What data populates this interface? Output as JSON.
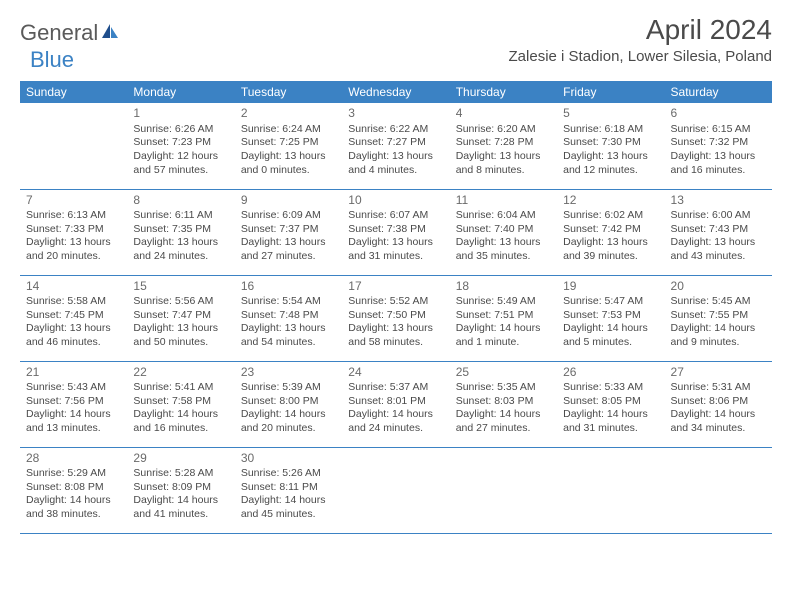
{
  "logo": {
    "text1": "General",
    "text2": "Blue"
  },
  "title": "April 2024",
  "location": "Zalesie i Stadion, Lower Silesia, Poland",
  "colors": {
    "header_bg": "#3b82c4",
    "header_text": "#ffffff",
    "text": "#4a4a4a",
    "logo_gray": "#5a5a5a",
    "logo_blue": "#3b82c4"
  },
  "weekdays": [
    "Sunday",
    "Monday",
    "Tuesday",
    "Wednesday",
    "Thursday",
    "Friday",
    "Saturday"
  ],
  "weeks": [
    [
      null,
      {
        "n": "1",
        "sr": "Sunrise: 6:26 AM",
        "ss": "Sunset: 7:23 PM",
        "d1": "Daylight: 12 hours",
        "d2": "and 57 minutes."
      },
      {
        "n": "2",
        "sr": "Sunrise: 6:24 AM",
        "ss": "Sunset: 7:25 PM",
        "d1": "Daylight: 13 hours",
        "d2": "and 0 minutes."
      },
      {
        "n": "3",
        "sr": "Sunrise: 6:22 AM",
        "ss": "Sunset: 7:27 PM",
        "d1": "Daylight: 13 hours",
        "d2": "and 4 minutes."
      },
      {
        "n": "4",
        "sr": "Sunrise: 6:20 AM",
        "ss": "Sunset: 7:28 PM",
        "d1": "Daylight: 13 hours",
        "d2": "and 8 minutes."
      },
      {
        "n": "5",
        "sr": "Sunrise: 6:18 AM",
        "ss": "Sunset: 7:30 PM",
        "d1": "Daylight: 13 hours",
        "d2": "and 12 minutes."
      },
      {
        "n": "6",
        "sr": "Sunrise: 6:15 AM",
        "ss": "Sunset: 7:32 PM",
        "d1": "Daylight: 13 hours",
        "d2": "and 16 minutes."
      }
    ],
    [
      {
        "n": "7",
        "sr": "Sunrise: 6:13 AM",
        "ss": "Sunset: 7:33 PM",
        "d1": "Daylight: 13 hours",
        "d2": "and 20 minutes."
      },
      {
        "n": "8",
        "sr": "Sunrise: 6:11 AM",
        "ss": "Sunset: 7:35 PM",
        "d1": "Daylight: 13 hours",
        "d2": "and 24 minutes."
      },
      {
        "n": "9",
        "sr": "Sunrise: 6:09 AM",
        "ss": "Sunset: 7:37 PM",
        "d1": "Daylight: 13 hours",
        "d2": "and 27 minutes."
      },
      {
        "n": "10",
        "sr": "Sunrise: 6:07 AM",
        "ss": "Sunset: 7:38 PM",
        "d1": "Daylight: 13 hours",
        "d2": "and 31 minutes."
      },
      {
        "n": "11",
        "sr": "Sunrise: 6:04 AM",
        "ss": "Sunset: 7:40 PM",
        "d1": "Daylight: 13 hours",
        "d2": "and 35 minutes."
      },
      {
        "n": "12",
        "sr": "Sunrise: 6:02 AM",
        "ss": "Sunset: 7:42 PM",
        "d1": "Daylight: 13 hours",
        "d2": "and 39 minutes."
      },
      {
        "n": "13",
        "sr": "Sunrise: 6:00 AM",
        "ss": "Sunset: 7:43 PM",
        "d1": "Daylight: 13 hours",
        "d2": "and 43 minutes."
      }
    ],
    [
      {
        "n": "14",
        "sr": "Sunrise: 5:58 AM",
        "ss": "Sunset: 7:45 PM",
        "d1": "Daylight: 13 hours",
        "d2": "and 46 minutes."
      },
      {
        "n": "15",
        "sr": "Sunrise: 5:56 AM",
        "ss": "Sunset: 7:47 PM",
        "d1": "Daylight: 13 hours",
        "d2": "and 50 minutes."
      },
      {
        "n": "16",
        "sr": "Sunrise: 5:54 AM",
        "ss": "Sunset: 7:48 PM",
        "d1": "Daylight: 13 hours",
        "d2": "and 54 minutes."
      },
      {
        "n": "17",
        "sr": "Sunrise: 5:52 AM",
        "ss": "Sunset: 7:50 PM",
        "d1": "Daylight: 13 hours",
        "d2": "and 58 minutes."
      },
      {
        "n": "18",
        "sr": "Sunrise: 5:49 AM",
        "ss": "Sunset: 7:51 PM",
        "d1": "Daylight: 14 hours",
        "d2": "and 1 minute."
      },
      {
        "n": "19",
        "sr": "Sunrise: 5:47 AM",
        "ss": "Sunset: 7:53 PM",
        "d1": "Daylight: 14 hours",
        "d2": "and 5 minutes."
      },
      {
        "n": "20",
        "sr": "Sunrise: 5:45 AM",
        "ss": "Sunset: 7:55 PM",
        "d1": "Daylight: 14 hours",
        "d2": "and 9 minutes."
      }
    ],
    [
      {
        "n": "21",
        "sr": "Sunrise: 5:43 AM",
        "ss": "Sunset: 7:56 PM",
        "d1": "Daylight: 14 hours",
        "d2": "and 13 minutes."
      },
      {
        "n": "22",
        "sr": "Sunrise: 5:41 AM",
        "ss": "Sunset: 7:58 PM",
        "d1": "Daylight: 14 hours",
        "d2": "and 16 minutes."
      },
      {
        "n": "23",
        "sr": "Sunrise: 5:39 AM",
        "ss": "Sunset: 8:00 PM",
        "d1": "Daylight: 14 hours",
        "d2": "and 20 minutes."
      },
      {
        "n": "24",
        "sr": "Sunrise: 5:37 AM",
        "ss": "Sunset: 8:01 PM",
        "d1": "Daylight: 14 hours",
        "d2": "and 24 minutes."
      },
      {
        "n": "25",
        "sr": "Sunrise: 5:35 AM",
        "ss": "Sunset: 8:03 PM",
        "d1": "Daylight: 14 hours",
        "d2": "and 27 minutes."
      },
      {
        "n": "26",
        "sr": "Sunrise: 5:33 AM",
        "ss": "Sunset: 8:05 PM",
        "d1": "Daylight: 14 hours",
        "d2": "and 31 minutes."
      },
      {
        "n": "27",
        "sr": "Sunrise: 5:31 AM",
        "ss": "Sunset: 8:06 PM",
        "d1": "Daylight: 14 hours",
        "d2": "and 34 minutes."
      }
    ],
    [
      {
        "n": "28",
        "sr": "Sunrise: 5:29 AM",
        "ss": "Sunset: 8:08 PM",
        "d1": "Daylight: 14 hours",
        "d2": "and 38 minutes."
      },
      {
        "n": "29",
        "sr": "Sunrise: 5:28 AM",
        "ss": "Sunset: 8:09 PM",
        "d1": "Daylight: 14 hours",
        "d2": "and 41 minutes."
      },
      {
        "n": "30",
        "sr": "Sunrise: 5:26 AM",
        "ss": "Sunset: 8:11 PM",
        "d1": "Daylight: 14 hours",
        "d2": "and 45 minutes."
      },
      null,
      null,
      null,
      null
    ]
  ]
}
